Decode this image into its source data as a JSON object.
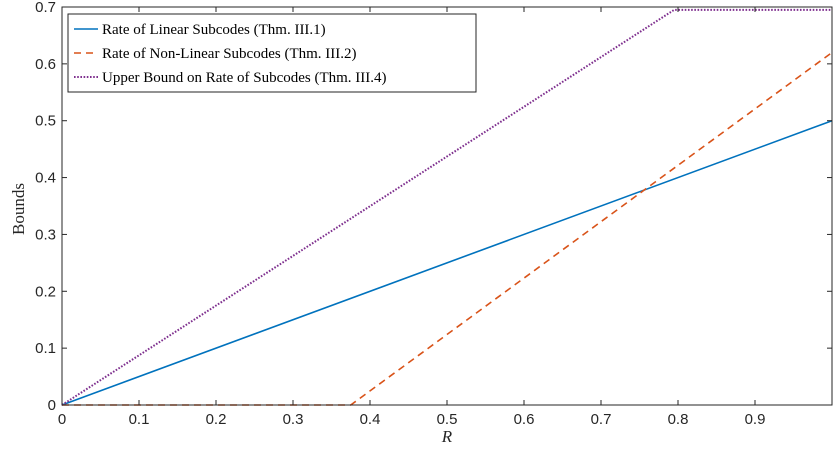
{
  "chart_data": {
    "type": "line",
    "title": "",
    "xlabel": "R",
    "ylabel": "Bounds",
    "xlim": [
      0,
      1
    ],
    "ylim": [
      0,
      0.7
    ],
    "xticks": [
      0,
      0.1,
      0.2,
      0.3,
      0.4,
      0.5,
      0.6,
      0.7,
      0.8,
      0.9
    ],
    "xtick_labels": [
      "0",
      "0.1",
      "0.2",
      "0.3",
      "0.4",
      "0.5",
      "0.6",
      "0.7",
      "0.8",
      "0.9"
    ],
    "yticks": [
      0,
      0.1,
      0.2,
      0.3,
      0.4,
      0.5,
      0.6,
      0.7
    ],
    "ytick_labels": [
      "0",
      "0.1",
      "0.2",
      "0.3",
      "0.4",
      "0.5",
      "0.6",
      "0.7"
    ],
    "grid": false,
    "legend_position": "top-left",
    "series": [
      {
        "name": "Rate of Linear Subcodes (Thm. III.1)",
        "color": "#0072BD",
        "style": "solid",
        "x": [
          0,
          1
        ],
        "y": [
          0,
          0.5
        ]
      },
      {
        "name": "Rate of Non-Linear Subcodes (Thm. III.2)",
        "color": "#D95319",
        "style": "dashed",
        "x": [
          0,
          0.375,
          1
        ],
        "y": [
          0,
          0,
          0.62
        ]
      },
      {
        "name": "Upper Bound on Rate of Subcodes (Thm. III.4)",
        "color": "#7E2F8E",
        "style": "dotted",
        "x": [
          0,
          0.795,
          1
        ],
        "y": [
          0,
          0.695,
          0.695
        ]
      }
    ]
  }
}
